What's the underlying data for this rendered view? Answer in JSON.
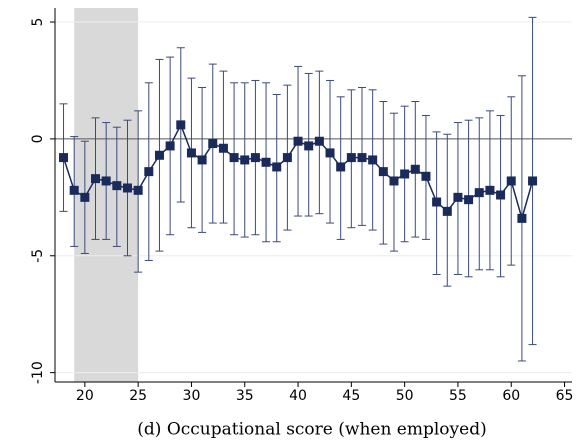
{
  "chart_data": {
    "type": "line",
    "caption": "(d) Occupational score (when employed)",
    "x": [
      18,
      19,
      20,
      21,
      22,
      23,
      24,
      25,
      26,
      27,
      28,
      29,
      30,
      31,
      32,
      33,
      34,
      35,
      36,
      37,
      38,
      39,
      40,
      41,
      42,
      43,
      44,
      45,
      46,
      47,
      48,
      49,
      50,
      51,
      52,
      53,
      54,
      55,
      56,
      57,
      58,
      59,
      60,
      61,
      62
    ],
    "values": [
      -0.8,
      -2.2,
      -2.5,
      -1.7,
      -1.8,
      -2.0,
      -2.1,
      -2.2,
      -1.4,
      -0.7,
      -0.3,
      0.6,
      -0.6,
      -0.9,
      -0.2,
      -0.4,
      -0.8,
      -0.9,
      -0.8,
      -1.0,
      -1.2,
      -0.8,
      -0.1,
      -0.3,
      -0.1,
      -0.6,
      -1.2,
      -0.8,
      -0.8,
      -0.9,
      -1.4,
      -1.8,
      -1.5,
      -1.3,
      -1.6,
      -2.7,
      -3.1,
      -2.5,
      -2.6,
      -2.3,
      -2.2,
      -2.4,
      -1.8,
      -3.4,
      -1.8
    ],
    "lower": [
      -3.1,
      -4.6,
      -4.9,
      -4.3,
      -4.3,
      -4.6,
      -5.0,
      -5.7,
      -5.2,
      -4.8,
      -4.1,
      -2.7,
      -3.8,
      -4.0,
      -3.6,
      -3.6,
      -4.1,
      -4.2,
      -4.1,
      -4.4,
      -4.4,
      -3.9,
      -3.3,
      -3.3,
      -3.2,
      -3.6,
      -4.3,
      -3.8,
      -3.7,
      -3.9,
      -4.5,
      -4.8,
      -4.4,
      -4.2,
      -4.3,
      -5.8,
      -6.3,
      -5.8,
      -5.9,
      -5.6,
      -5.6,
      -5.9,
      -5.4,
      -9.5,
      -8.8
    ],
    "upper": [
      1.5,
      0.1,
      -0.1,
      0.9,
      0.7,
      0.5,
      0.8,
      1.2,
      2.4,
      3.4,
      3.5,
      3.9,
      2.6,
      2.2,
      3.2,
      2.9,
      2.4,
      2.4,
      2.5,
      2.4,
      1.9,
      2.3,
      3.1,
      2.8,
      2.9,
      2.5,
      1.8,
      2.1,
      2.2,
      2.1,
      1.6,
      1.1,
      1.4,
      1.6,
      1.0,
      0.3,
      0.2,
      0.7,
      0.8,
      0.9,
      1.2,
      1.0,
      1.8,
      2.7,
      5.2
    ],
    "color": "#1a2a5a",
    "error_color": "#3b4a7a",
    "shaded_region": [
      19,
      25
    ],
    "shade_color": "#d9d9d9",
    "reference_line": 0,
    "xlim": [
      17.2,
      65.7
    ],
    "xticks": [
      20,
      25,
      30,
      35,
      40,
      45,
      50,
      55,
      60,
      65
    ],
    "ylim": [
      -10.4,
      5.6
    ],
    "yticks": [
      -10,
      -5,
      0,
      5
    ],
    "grid": true
  }
}
